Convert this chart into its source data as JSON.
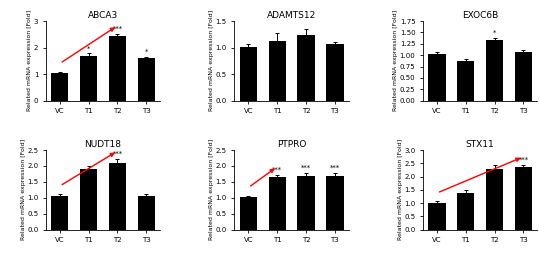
{
  "subplots": [
    {
      "title": "ABCA3",
      "categories": [
        "VC",
        "T1",
        "T2",
        "T3"
      ],
      "values": [
        1.05,
        1.7,
        2.45,
        1.6
      ],
      "errors": [
        0.05,
        0.08,
        0.08,
        0.06
      ],
      "ylim": [
        0,
        3.0
      ],
      "yticks": [
        0,
        1.0,
        2.0,
        3.0
      ],
      "arrow": [
        0,
        2
      ],
      "sig_labels": {
        "1": "*",
        "2": "***",
        "3": "*"
      },
      "has_arrow": true
    },
    {
      "title": "ADAMTS12",
      "categories": [
        "VC",
        "T1",
        "T2",
        "T3"
      ],
      "values": [
        1.02,
        1.12,
        1.23,
        1.06
      ],
      "errors": [
        0.05,
        0.15,
        0.12,
        0.05
      ],
      "ylim": [
        0.0,
        1.5
      ],
      "yticks": [
        0.0,
        0.5,
        1.0,
        1.5
      ],
      "sig_labels": {},
      "has_arrow": false
    },
    {
      "title": "EXOC6B",
      "categories": [
        "VC",
        "T1",
        "T2",
        "T3"
      ],
      "values": [
        1.02,
        0.87,
        1.33,
        1.07
      ],
      "errors": [
        0.05,
        0.04,
        0.05,
        0.04
      ],
      "ylim": [
        0.0,
        1.75
      ],
      "yticks": [
        0.0,
        0.25,
        0.5,
        0.75,
        1.0,
        1.25,
        1.5,
        1.75
      ],
      "sig_labels": {
        "2": "*"
      },
      "has_arrow": false
    },
    {
      "title": "NUDT18",
      "categories": [
        "VC",
        "T1",
        "T2",
        "T3"
      ],
      "values": [
        1.05,
        1.9,
        2.1,
        1.05
      ],
      "errors": [
        0.07,
        0.1,
        0.12,
        0.06
      ],
      "ylim": [
        0,
        2.5
      ],
      "yticks": [
        0.0,
        0.5,
        1.0,
        1.5,
        2.0,
        2.5
      ],
      "sig_labels": {
        "2": "***"
      },
      "has_arrow": true,
      "arrow": [
        0,
        2
      ]
    },
    {
      "title": "PTPRO",
      "categories": [
        "VC",
        "T1",
        "T2",
        "T3"
      ],
      "values": [
        1.02,
        1.65,
        1.7,
        1.68
      ],
      "errors": [
        0.05,
        0.08,
        0.08,
        0.1
      ],
      "ylim": [
        0,
        2.5
      ],
      "yticks": [
        0.0,
        0.5,
        1.0,
        1.5,
        2.0,
        2.5
      ],
      "sig_labels": {
        "1": "***",
        "2": "***",
        "3": "***"
      },
      "has_arrow": true,
      "arrow": [
        0,
        1
      ]
    },
    {
      "title": "STX11",
      "categories": [
        "VC",
        "T1",
        "T2",
        "T3"
      ],
      "values": [
        1.02,
        1.4,
        2.3,
        2.35
      ],
      "errors": [
        0.06,
        0.1,
        0.12,
        0.1
      ],
      "ylim": [
        0,
        3.0
      ],
      "yticks": [
        0.0,
        0.5,
        1.0,
        1.5,
        2.0,
        2.5,
        3.0
      ],
      "sig_labels": {
        "3": "***"
      },
      "has_arrow": true,
      "arrow": [
        0,
        3
      ]
    }
  ],
  "bar_color": "#000000",
  "arrow_color": "#ff0000",
  "ylabel": "Related mRNA expression [Fold]",
  "ylabel_fontsize": 4.5,
  "title_fontsize": 6.5,
  "tick_fontsize": 5.0,
  "sig_fontsize": 5.0
}
